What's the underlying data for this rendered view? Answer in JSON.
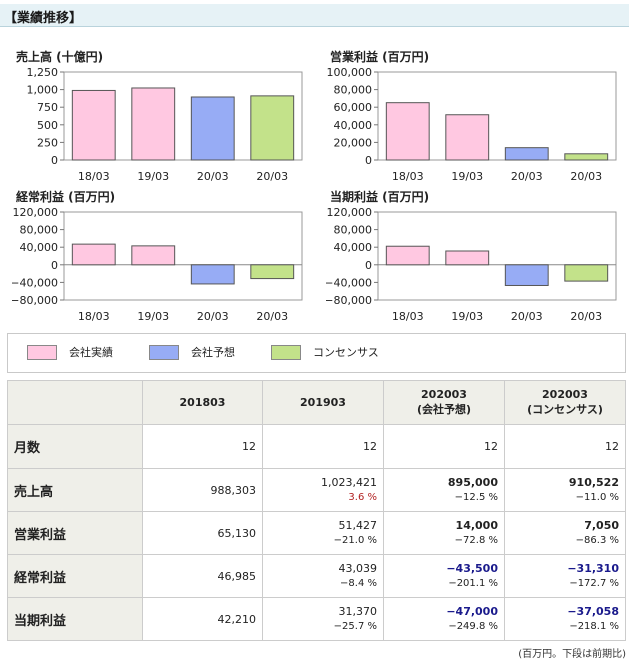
{
  "header": {
    "title": "【業績推移】"
  },
  "colors": {
    "actual": "#ffc8e1",
    "forecast": "#97acf5",
    "consensus": "#c3e28a"
  },
  "chart_data": [
    {
      "type": "bar",
      "title": "売上高 (十億円)",
      "categories": [
        "18/03",
        "19/03",
        "20/03",
        "20/03"
      ],
      "values": [
        988,
        1023,
        895,
        911
      ],
      "kinds": [
        "actual",
        "actual",
        "forecast",
        "consensus"
      ],
      "ylim": [
        0,
        1250
      ],
      "ticks": [
        0,
        250,
        500,
        750,
        1000,
        1250
      ],
      "tick_labels": [
        "0",
        "250",
        "500",
        "750",
        "1,000",
        "1,250"
      ]
    },
    {
      "type": "bar",
      "title": "営業利益 (百万円)",
      "categories": [
        "18/03",
        "19/03",
        "20/03",
        "20/03"
      ],
      "values": [
        65130,
        51427,
        14000,
        7050
      ],
      "kinds": [
        "actual",
        "actual",
        "forecast",
        "consensus"
      ],
      "ylim": [
        0,
        100000
      ],
      "ticks": [
        0,
        20000,
        40000,
        60000,
        80000,
        100000
      ],
      "tick_labels": [
        "0",
        "20,000",
        "40,000",
        "60,000",
        "80,000",
        "100,000"
      ]
    },
    {
      "type": "bar",
      "title": "経常利益 (百万円)",
      "categories": [
        "18/03",
        "19/03",
        "20/03",
        "20/03"
      ],
      "values": [
        46985,
        43039,
        -43500,
        -31310
      ],
      "kinds": [
        "actual",
        "actual",
        "forecast",
        "consensus"
      ],
      "ylim": [
        -80000,
        120000
      ],
      "ticks": [
        -80000,
        -40000,
        0,
        40000,
        80000,
        120000
      ],
      "tick_labels": [
        "−80,000",
        "−40,000",
        "0",
        "40,000",
        "80,000",
        "120,000"
      ]
    },
    {
      "type": "bar",
      "title": "当期利益 (百万円)",
      "categories": [
        "18/03",
        "19/03",
        "20/03",
        "20/03"
      ],
      "values": [
        42210,
        31370,
        -47000,
        -37058
      ],
      "kinds": [
        "actual",
        "actual",
        "forecast",
        "consensus"
      ],
      "ylim": [
        -80000,
        120000
      ],
      "ticks": [
        -80000,
        -40000,
        0,
        40000,
        80000,
        120000
      ],
      "tick_labels": [
        "−80,000",
        "−40,000",
        "0",
        "40,000",
        "80,000",
        "120,000"
      ]
    }
  ],
  "legend": [
    {
      "label": "会社実績",
      "kind": "actual"
    },
    {
      "label": "会社予想",
      "kind": "forecast"
    },
    {
      "label": "コンセンサス",
      "kind": "consensus"
    }
  ],
  "table": {
    "headers": [
      "",
      "201803",
      "201903",
      "202003\n(会社予想)",
      "202003\n(コンセンサス)"
    ],
    "rows": [
      {
        "label": "月数",
        "cells": [
          {
            "v": "12"
          },
          {
            "v": "12"
          },
          {
            "v": "12"
          },
          {
            "v": "12"
          }
        ]
      },
      {
        "label": "売上高",
        "cells": [
          {
            "v": "988,303"
          },
          {
            "v": "1,023,421",
            "s": "3.6 %",
            "sc": "pos-red"
          },
          {
            "v": "895,000",
            "vc": "bold",
            "s": "−12.5 %"
          },
          {
            "v": "910,522",
            "vc": "bold",
            "s": "−11.0 %"
          }
        ]
      },
      {
        "label": "営業利益",
        "cells": [
          {
            "v": "65,130"
          },
          {
            "v": "51,427",
            "s": "−21.0 %"
          },
          {
            "v": "14,000",
            "vc": "bold",
            "s": "−72.8 %"
          },
          {
            "v": "7,050",
            "vc": "bold",
            "s": "−86.3 %"
          }
        ]
      },
      {
        "label": "経常利益",
        "cells": [
          {
            "v": "46,985"
          },
          {
            "v": "43,039",
            "s": "−8.4 %"
          },
          {
            "v": "−43,500",
            "vc": "neg-blue",
            "s": "−201.1 %"
          },
          {
            "v": "−31,310",
            "vc": "neg-blue",
            "s": "−172.7 %"
          }
        ]
      },
      {
        "label": "当期利益",
        "cells": [
          {
            "v": "42,210"
          },
          {
            "v": "31,370",
            "s": "−25.7 %"
          },
          {
            "v": "−47,000",
            "vc": "neg-blue",
            "s": "−249.8 %"
          },
          {
            "v": "−37,058",
            "vc": "neg-blue",
            "s": "−218.1 %"
          }
        ]
      }
    ]
  },
  "note": "(百万円。下段は前期比)"
}
